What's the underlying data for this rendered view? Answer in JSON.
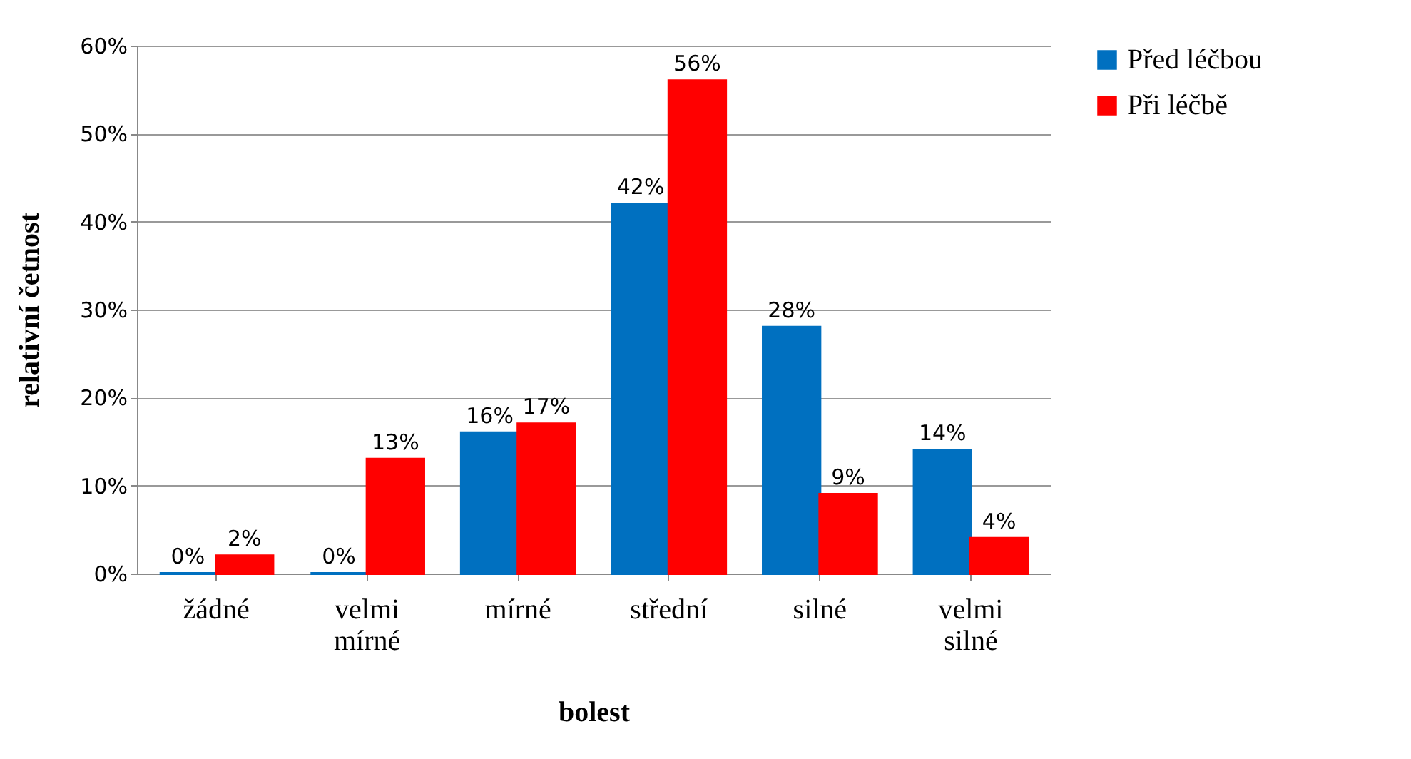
{
  "chart_data": {
    "type": "bar",
    "xlabel": "bolest",
    "ylabel": "relativní četnost",
    "categories": [
      "žádné",
      "velmi mírné",
      "mírné",
      "střední",
      "silné",
      "velmi silné"
    ],
    "series": [
      {
        "name": "Před léčbou",
        "color": "#0070c0",
        "values": [
          0,
          0,
          16,
          42,
          28,
          14
        ],
        "value_labels": [
          "0%",
          "0%",
          "16%",
          "42%",
          "28%",
          "14%"
        ]
      },
      {
        "name": "Při léčbě",
        "color": "#ff0000",
        "values": [
          2,
          13,
          17,
          56,
          9,
          4
        ],
        "value_labels": [
          "2%",
          "13%",
          "17%",
          "56%",
          "9%",
          "4%"
        ]
      }
    ],
    "ylim": [
      0,
      60
    ],
    "yticks": [
      {
        "value": 0,
        "label": "0%"
      },
      {
        "value": 10,
        "label": "10%"
      },
      {
        "value": 20,
        "label": "20%"
      },
      {
        "value": 30,
        "label": "30%"
      },
      {
        "value": 40,
        "label": "40%"
      },
      {
        "value": 50,
        "label": "50%"
      },
      {
        "value": 60,
        "label": "60%"
      }
    ],
    "grid": "y",
    "legend": "right"
  }
}
